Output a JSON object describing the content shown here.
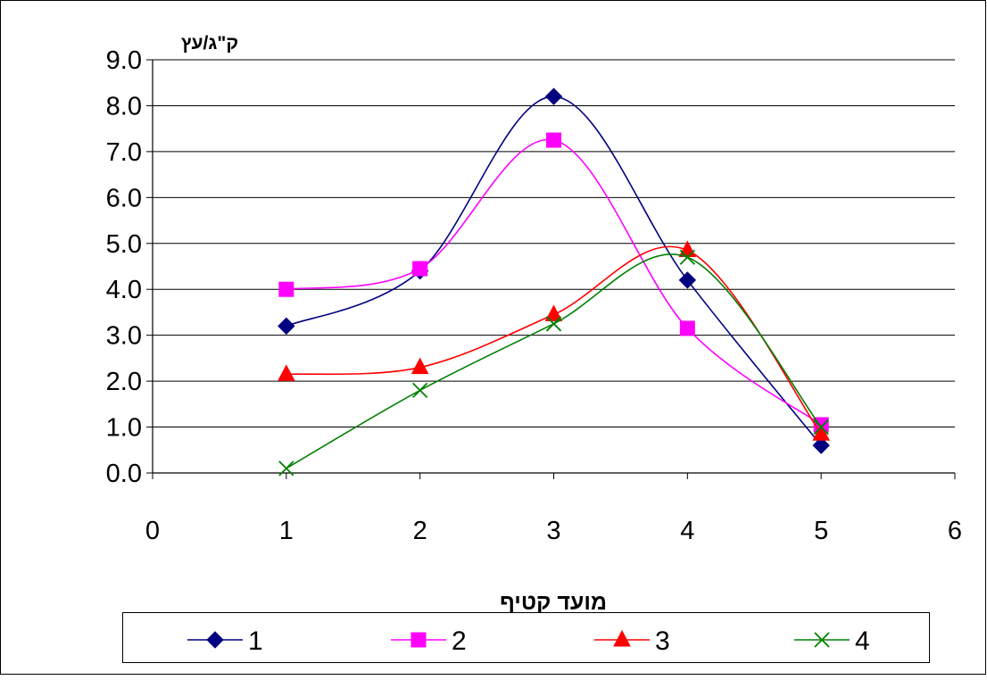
{
  "chart_data": {
    "type": "scatter",
    "title": "",
    "xlabel": "מועד קטיף",
    "ylabel": "ק\"ג/עץ",
    "xlim": [
      0,
      6
    ],
    "ylim": [
      0,
      9
    ],
    "x_ticks": [
      "0",
      "1",
      "2",
      "3",
      "4",
      "5",
      "6"
    ],
    "y_ticks": [
      "0.0",
      "1.0",
      "2.0",
      "3.0",
      "4.0",
      "5.0",
      "6.0",
      "7.0",
      "8.0",
      "9.0"
    ],
    "smoothed_lines": true,
    "grid": "horizontal",
    "legend_position": "bottom",
    "series": [
      {
        "name": "1",
        "color": "#000080",
        "marker": "diamond",
        "x": [
          1,
          2,
          3,
          4,
          5
        ],
        "y": [
          3.2,
          4.4,
          8.2,
          4.2,
          0.6
        ]
      },
      {
        "name": "2",
        "color": "#FF00FF",
        "marker": "square",
        "x": [
          1,
          2,
          3,
          4,
          5
        ],
        "y": [
          4.0,
          4.45,
          7.25,
          3.15,
          1.05
        ]
      },
      {
        "name": "3",
        "color": "#FF0000",
        "marker": "triangle",
        "x": [
          1,
          2,
          3,
          4,
          5
        ],
        "y": [
          2.15,
          2.3,
          3.45,
          4.85,
          0.85
        ]
      },
      {
        "name": "4",
        "color": "#008000",
        "marker": "x",
        "x": [
          1,
          2,
          3,
          4,
          5
        ],
        "y": [
          0.1,
          1.8,
          3.25,
          4.7,
          1.0
        ]
      }
    ]
  }
}
